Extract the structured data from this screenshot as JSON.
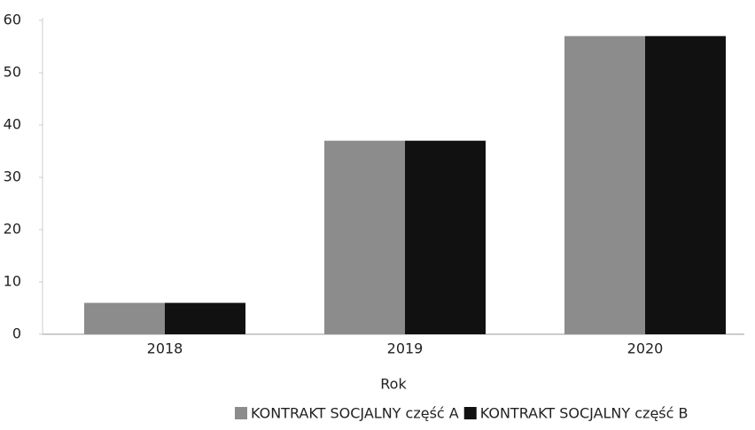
{
  "chart_data": {
    "type": "bar",
    "x_label": "Rok",
    "categories": [
      "2018",
      "2019",
      "2020"
    ],
    "series": [
      {
        "name": "KONTRAKT SOCJALNY część A",
        "color": "#8c8c8c",
        "values": [
          6,
          37,
          57
        ]
      },
      {
        "name": "KONTRAKT SOCJALNY część B",
        "color": "#111111",
        "values": [
          6,
          37,
          57
        ]
      }
    ],
    "ylim": [
      0,
      60
    ],
    "yticks": [
      0,
      10,
      20,
      30,
      40,
      50,
      60
    ],
    "grid": false,
    "legend": "bottom"
  }
}
